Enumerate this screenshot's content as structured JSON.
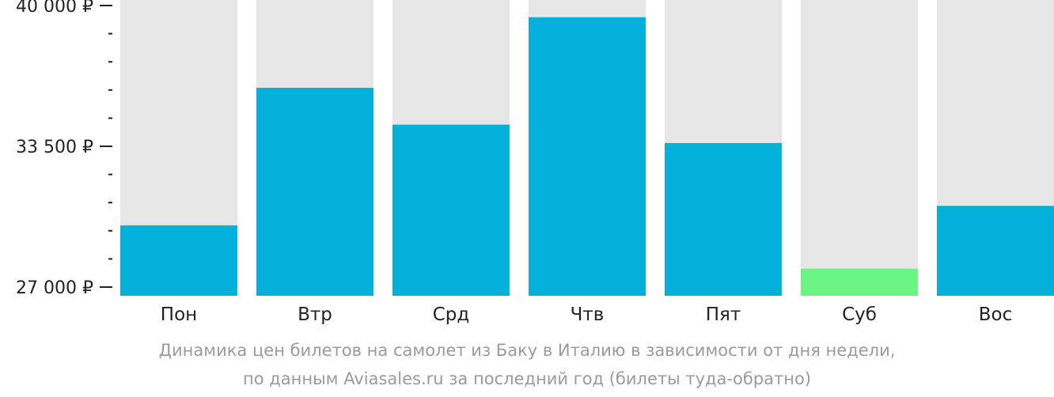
{
  "chart_data": {
    "type": "bar",
    "categories": [
      "Пон",
      "Втр",
      "Срд",
      "Чтв",
      "Пят",
      "Суб",
      "Вос"
    ],
    "values": [
      29850,
      36200,
      34500,
      39460,
      33650,
      27850,
      30750
    ],
    "highlight_index": 5,
    "ylim": [
      27000,
      40000
    ],
    "yticks": [
      {
        "value": 27000,
        "label": "27 000 ₽"
      },
      {
        "value": 33500,
        "label": "33 500 ₽"
      },
      {
        "value": 40000,
        "label": "40 000 ₽"
      }
    ],
    "minor_tick_step": 1300,
    "colors": {
      "bar": "#03b0db",
      "highlight": "#6af485",
      "background_column": "#e6e6e6",
      "axis": "#222222"
    }
  },
  "caption": {
    "line1": "Динамика цен билетов на самолет из Баку в Италию в зависимости от дня недели,",
    "line2": "по данным Aviasales.ru за последний год (билеты туда-обратно)"
  }
}
